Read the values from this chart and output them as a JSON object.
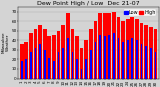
{
  "title": "Dew Point High / Low  Dec 21-07",
  "ylabel_left": "Milwaukee\nWeather",
  "legend_high": "High",
  "legend_low": "Low",
  "high_color": "#ff0000",
  "low_color": "#0000ff",
  "background_color": "#d4d4d4",
  "plot_bg_color": "#d4d4d4",
  "ylim": [
    0,
    75
  ],
  "bar_width": 0.38,
  "high_values": [
    36,
    38,
    48,
    52,
    56,
    52,
    44,
    46,
    50,
    56,
    68,
    52,
    44,
    32,
    40,
    52,
    60,
    68,
    68,
    68,
    70,
    64,
    60,
    62,
    64,
    62,
    58,
    56,
    54,
    52
  ],
  "low_values": [
    18,
    20,
    28,
    32,
    36,
    30,
    22,
    18,
    28,
    32,
    42,
    28,
    20,
    10,
    20,
    30,
    38,
    45,
    44,
    46,
    48,
    42,
    38,
    40,
    42,
    40,
    36,
    34,
    32,
    28
  ],
  "x_labels": [
    "1",
    "2",
    "3",
    "4",
    "5",
    "6",
    "7",
    "8",
    "9",
    "10",
    "11",
    "12",
    "13",
    "14",
    "15",
    "16",
    "17",
    "18",
    "19",
    "20",
    "21",
    "22",
    "23",
    "24",
    "25",
    "26",
    "27",
    "28",
    "29",
    "30"
  ],
  "grid_color": "#aaaaaa",
  "yticks": [
    0,
    10,
    20,
    30,
    40,
    50,
    60,
    70
  ],
  "title_fontsize": 4.5,
  "tick_fontsize": 3.0,
  "legend_fontsize": 3.5
}
